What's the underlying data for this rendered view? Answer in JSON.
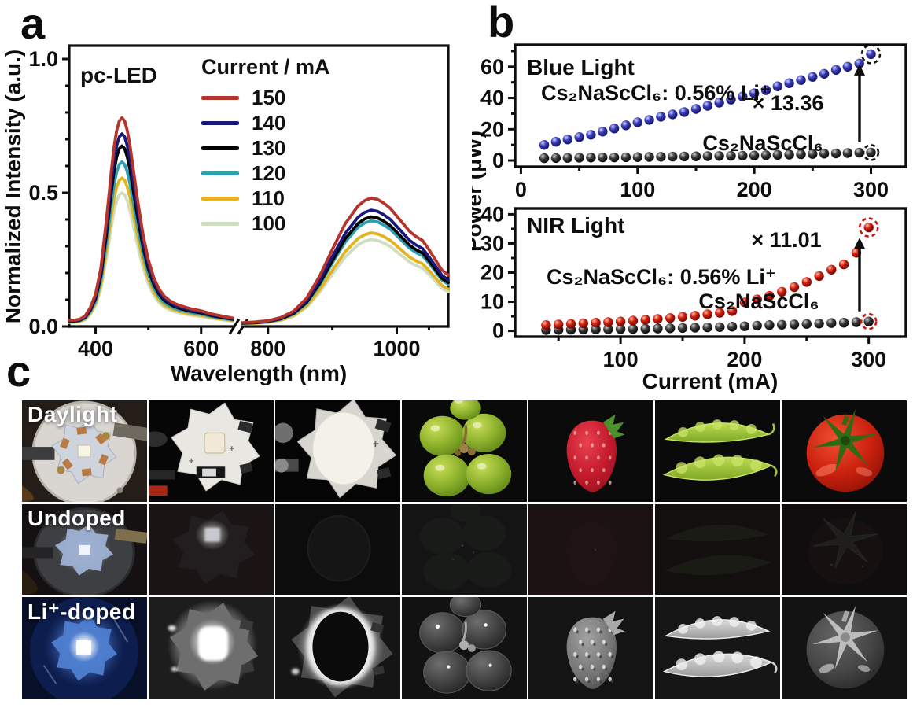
{
  "figure": {
    "panel_labels": {
      "a": "a",
      "b": "b",
      "c": "c"
    }
  },
  "chart_data": [
    {
      "id": "panel_a",
      "type": "line",
      "title": "pc-LED",
      "xlabel": "Wavelength (nm)",
      "ylabel": "Normalized Intensity (a.u.)",
      "legend_title": "Current / mA",
      "axis_break": [
        660,
        760
      ],
      "xlim_left": [
        350,
        660
      ],
      "xlim_right": [
        760,
        1080
      ],
      "ylim": [
        0,
        1.05
      ],
      "yticks": [
        0.0,
        0.5,
        1.0
      ],
      "yticks_minor": [
        0.1,
        0.2,
        0.3,
        0.4,
        0.6,
        0.7,
        0.8,
        0.9,
        1.0
      ],
      "xticks_left": [
        400,
        600
      ],
      "xticks_left_minor": [
        500
      ],
      "xticks_right": [
        800,
        1000
      ],
      "xticks_right_minor": [
        900,
        1050
      ],
      "series": [
        {
          "label": "150",
          "color": "#b5342c",
          "peak_blue": 0.78,
          "peak_nir": 0.48
        },
        {
          "label": "140",
          "color": "#18187d",
          "peak_blue": 0.72,
          "peak_nir": 0.435
        },
        {
          "label": "130",
          "color": "#000000",
          "peak_blue": 0.675,
          "peak_nir": 0.41
        },
        {
          "label": "120",
          "color": "#2e9fb0",
          "peak_blue": 0.615,
          "peak_nir": 0.395
        },
        {
          "label": "110",
          "color": "#e3b322",
          "peak_blue": 0.555,
          "peak_nir": 0.35
        },
        {
          "label": "100",
          "color": "#cedec0",
          "peak_blue": 0.5,
          "peak_nir": 0.325
        }
      ],
      "blue_band_shape": {
        "wavelength": [
          350,
          360,
          370,
          380,
          390,
          400,
          410,
          420,
          425,
          430,
          435,
          440,
          445,
          450,
          455,
          460,
          465,
          470,
          480,
          490,
          500,
          510,
          520,
          530,
          540,
          550,
          560,
          580,
          600,
          620,
          640,
          660
        ],
        "normalized": [
          0.03,
          0.03,
          0.035,
          0.05,
          0.09,
          0.155,
          0.28,
          0.5,
          0.62,
          0.75,
          0.86,
          0.94,
          0.985,
          1.0,
          0.985,
          0.94,
          0.87,
          0.78,
          0.6,
          0.44,
          0.32,
          0.235,
          0.18,
          0.145,
          0.125,
          0.11,
          0.1,
          0.085,
          0.075,
          0.06,
          0.05,
          0.04
        ]
      },
      "nir_band_shape": {
        "wavelength": [
          760,
          780,
          800,
          820,
          840,
          860,
          880,
          900,
          920,
          940,
          950,
          960,
          970,
          980,
          990,
          1000,
          1010,
          1020,
          1030,
          1040,
          1050,
          1060,
          1070,
          1080
        ],
        "normalized": [
          0.03,
          0.035,
          0.045,
          0.07,
          0.12,
          0.22,
          0.39,
          0.6,
          0.8,
          0.94,
          0.98,
          1.0,
          0.99,
          0.96,
          0.92,
          0.86,
          0.8,
          0.74,
          0.7,
          0.67,
          0.6,
          0.52,
          0.44,
          0.4
        ]
      }
    },
    {
      "id": "panel_b_top",
      "type": "scatter",
      "title": "Blue Light",
      "xlabel": "",
      "ylabel": "Power (μW)",
      "xlim": [
        -5,
        330
      ],
      "ylim": [
        -4,
        74
      ],
      "xticks": [
        0,
        100,
        200,
        300
      ],
      "xticks_minor": [
        50,
        150,
        250
      ],
      "yticks": [
        0,
        20,
        40,
        60
      ],
      "yticks_minor": [
        10,
        30,
        50,
        70
      ],
      "multiplier_annotation": "× 13.36",
      "series": [
        {
          "label": "Cs₂NaScCl₆: 0.56% Li⁺",
          "color": "#2a2aa0",
          "x": [
            20,
            30,
            40,
            50,
            60,
            70,
            80,
            90,
            100,
            110,
            120,
            130,
            140,
            150,
            160,
            170,
            180,
            190,
            200,
            210,
            220,
            230,
            240,
            250,
            260,
            270,
            280,
            290,
            300
          ],
          "y": [
            10,
            12,
            13.5,
            15,
            16.5,
            18.5,
            20.5,
            22.5,
            24.5,
            26,
            28,
            29.5,
            31,
            33,
            35,
            37,
            39,
            41,
            43,
            45,
            47.5,
            49.5,
            51.5,
            53.5,
            55.5,
            58,
            60,
            62,
            68
          ]
        },
        {
          "label": "Cs₂NaScCl₆",
          "color": "#141414",
          "x": [
            20,
            30,
            40,
            50,
            60,
            70,
            80,
            90,
            100,
            110,
            120,
            130,
            140,
            150,
            160,
            170,
            180,
            190,
            200,
            210,
            220,
            230,
            240,
            250,
            260,
            270,
            280,
            290,
            300
          ],
          "y": [
            1.5,
            1.6,
            1.7,
            1.8,
            1.9,
            2,
            2,
            2.1,
            2.2,
            2.3,
            2.4,
            2.5,
            2.6,
            2.7,
            2.8,
            2.9,
            3,
            3.1,
            3.2,
            3.4,
            3.6,
            3.8,
            4,
            4.2,
            4.4,
            4.6,
            4.8,
            5,
            5.1
          ]
        }
      ]
    },
    {
      "id": "panel_b_bottom",
      "type": "scatter",
      "title": "NIR Light",
      "xlabel": "Current (mA)",
      "ylabel": "Power (μW)",
      "xlim": [
        15,
        330
      ],
      "ylim": [
        -2,
        42
      ],
      "xticks": [
        100,
        200,
        300
      ],
      "xticks_minor": [
        50,
        150,
        250
      ],
      "yticks": [
        0,
        10,
        20,
        30,
        40
      ],
      "yticks_minor": [
        5,
        15,
        25,
        35
      ],
      "multiplier_annotation": "× 11.01",
      "series": [
        {
          "label": "Cs₂NaScCl₆: 0.56% Li⁺",
          "color": "#cc1408",
          "x": [
            40,
            50,
            60,
            70,
            80,
            90,
            100,
            110,
            120,
            130,
            140,
            150,
            160,
            170,
            180,
            190,
            200,
            210,
            220,
            230,
            240,
            250,
            260,
            270,
            280,
            290,
            300
          ],
          "y": [
            2,
            2.2,
            2.4,
            2.6,
            2.8,
            3,
            3.2,
            3.5,
            3.8,
            4.1,
            4.4,
            4.8,
            5.2,
            5.7,
            6.2,
            6.8,
            9.8,
            10.8,
            12,
            13.4,
            15,
            16.8,
            18.8,
            21,
            22.8,
            26.8,
            35.5
          ]
        },
        {
          "label": "Cs₂NaScCl₆",
          "color": "#141414",
          "x": [
            40,
            50,
            60,
            70,
            80,
            90,
            100,
            110,
            120,
            130,
            140,
            150,
            160,
            170,
            180,
            190,
            200,
            210,
            220,
            230,
            240,
            250,
            260,
            270,
            280,
            290,
            300
          ],
          "y": [
            0.3,
            0.35,
            0.4,
            0.45,
            0.5,
            0.55,
            0.6,
            0.65,
            0.7,
            0.8,
            0.9,
            1,
            1.1,
            1.2,
            1.3,
            1.45,
            1.6,
            1.8,
            2,
            2.1,
            2.2,
            2.4,
            2.5,
            2.7,
            2.8,
            3,
            3.2
          ]
        }
      ]
    }
  ],
  "panel_c": {
    "row_labels": [
      "Daylight",
      "Undoped",
      "Li⁺-doped"
    ],
    "row_modes": [
      "daylight",
      "undoped",
      "doped"
    ],
    "columns": [
      "led-module-round-base",
      "led-star-board",
      "led-star-phosphor-disc",
      "grapes",
      "strawberry",
      "pea-pods",
      "tomato"
    ]
  }
}
